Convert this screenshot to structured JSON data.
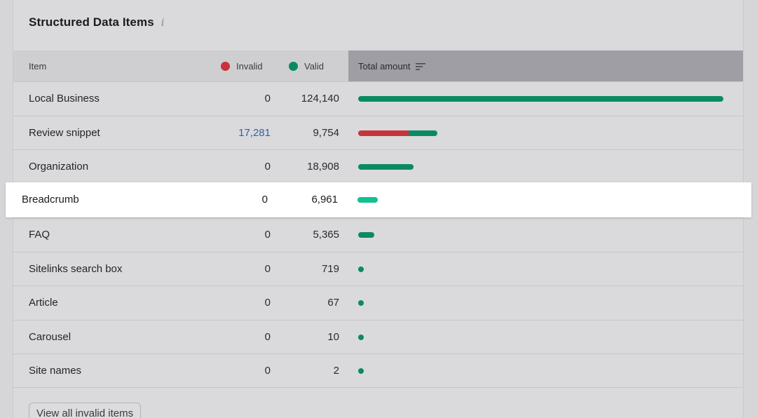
{
  "panel": {
    "title": "Structured Data Items",
    "info_icon": "info-icon"
  },
  "table": {
    "columns": {
      "item": "Item",
      "invalid": "Invalid",
      "valid": "Valid",
      "total": "Total amount"
    },
    "colors": {
      "invalid": "#c8343c",
      "valid": "#0a8a63",
      "valid_highlight": "#14c08f"
    },
    "max_total": 124140,
    "rows": [
      {
        "item": "Local Business",
        "invalid": "0",
        "valid": "124,140",
        "invalid_n": 0,
        "valid_n": 124140
      },
      {
        "item": "Review snippet",
        "invalid": "17,281",
        "valid": "9,754",
        "invalid_n": 17281,
        "valid_n": 9754
      },
      {
        "item": "Organization",
        "invalid": "0",
        "valid": "18,908",
        "invalid_n": 0,
        "valid_n": 18908
      },
      {
        "item": "Breadcrumb",
        "invalid": "0",
        "valid": "6,961",
        "invalid_n": 0,
        "valid_n": 6961,
        "highlighted": true
      },
      {
        "item": "FAQ",
        "invalid": "0",
        "valid": "5,365",
        "invalid_n": 0,
        "valid_n": 5365
      },
      {
        "item": "Sitelinks search box",
        "invalid": "0",
        "valid": "719",
        "invalid_n": 0,
        "valid_n": 719
      },
      {
        "item": "Article",
        "invalid": "0",
        "valid": "67",
        "invalid_n": 0,
        "valid_n": 67
      },
      {
        "item": "Carousel",
        "invalid": "0",
        "valid": "10",
        "invalid_n": 0,
        "valid_n": 10
      },
      {
        "item": "Site names",
        "invalid": "0",
        "valid": "2",
        "invalid_n": 0,
        "valid_n": 2
      }
    ]
  },
  "footer": {
    "view_all_button": "View all invalid items"
  }
}
